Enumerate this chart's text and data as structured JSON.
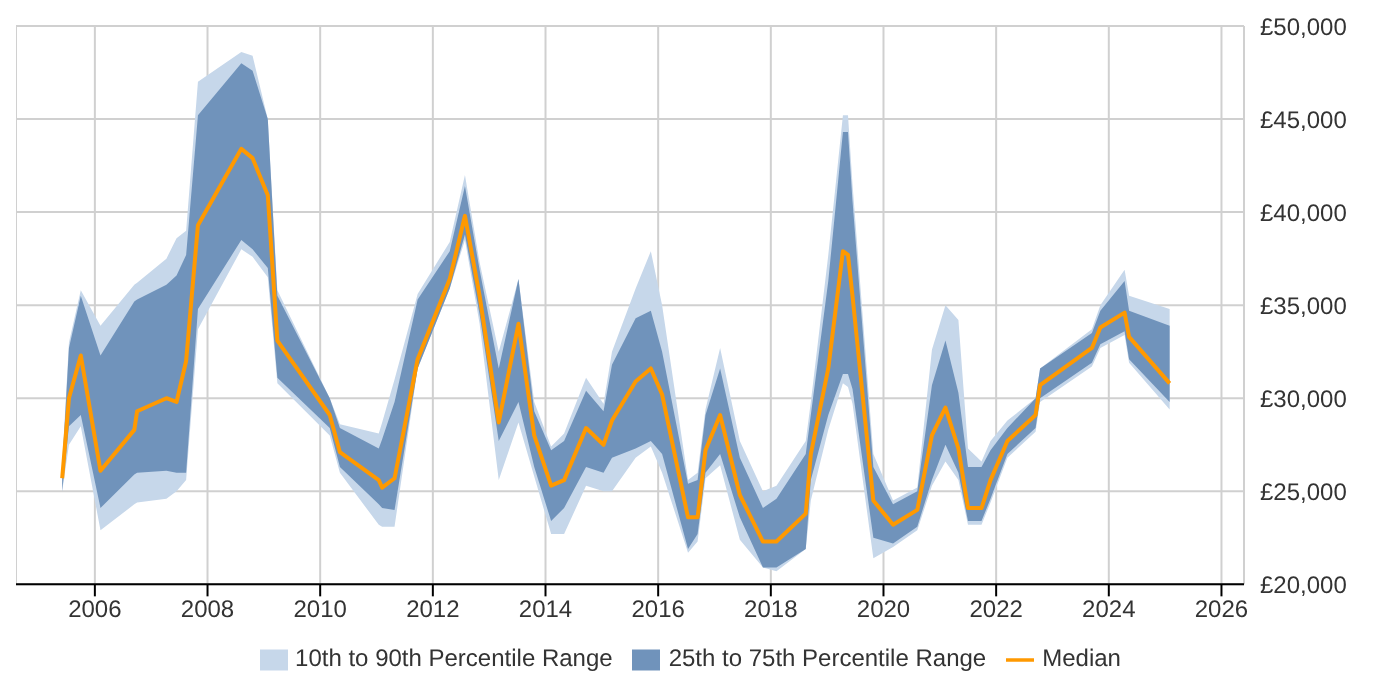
{
  "chart_data": {
    "type": "line",
    "grid": true,
    "legend": "bottom",
    "x": [
      2005.42,
      2005.54,
      2005.75,
      2006.1,
      2006.7,
      2006.75,
      2007.27,
      2007.45,
      2007.62,
      2007.83,
      2008.6,
      2008.8,
      2009.07,
      2009.24,
      2010.17,
      2010.35,
      2011.04,
      2011.1,
      2011.32,
      2011.73,
      2012.3,
      2012.57,
      2012.83,
      2013.17,
      2013.52,
      2013.8,
      2014.1,
      2014.33,
      2014.72,
      2015.03,
      2015.18,
      2015.6,
      2015.87,
      2016.07,
      2016.53,
      2016.7,
      2016.84,
      2017.1,
      2017.45,
      2017.86,
      2018.1,
      2018.62,
      2018.71,
      2019.02,
      2019.28,
      2019.37,
      2019.45,
      2019.82,
      2020.17,
      2020.6,
      2020.86,
      2021.1,
      2021.33,
      2021.5,
      2021.74,
      2021.9,
      2022.2,
      2022.7,
      2022.78,
      2023.7,
      2023.85,
      2024.28,
      2024.36,
      2025.08
    ],
    "series": [
      {
        "name": "10th to 90th Percentile Range",
        "type": "area",
        "color": "#c6d7ea",
        "lower": [
          25000,
          27500,
          28500,
          22900,
          24300,
          24400,
          24600,
          25000,
          25600,
          33700,
          38000,
          37600,
          36500,
          30800,
          28000,
          26000,
          23200,
          23100,
          23100,
          31600,
          35900,
          38500,
          34000,
          25600,
          28700,
          25800,
          22700,
          22700,
          25300,
          25000,
          25000,
          26800,
          27400,
          26000,
          21700,
          22300,
          25700,
          26400,
          22400,
          20900,
          20700,
          21900,
          24500,
          28300,
          30800,
          30600,
          29700,
          21400,
          22000,
          22900,
          25300,
          26600,
          25600,
          23200,
          23200,
          24400,
          26800,
          28200,
          29800,
          31700,
          32700,
          33400,
          31900,
          29400
        ],
        "values": [
          null,
          null,
          null,
          null,
          null,
          null,
          null,
          null,
          null,
          null,
          null,
          null,
          null,
          null,
          null,
          null,
          null,
          null,
          null,
          null,
          null,
          null,
          null,
          null,
          null,
          null,
          null,
          null,
          null,
          null,
          null,
          null,
          null,
          null,
          null,
          null,
          null,
          null,
          null,
          null,
          null,
          null,
          null,
          null,
          null,
          null,
          null,
          null,
          null,
          null,
          null,
          null,
          null,
          null,
          null,
          null,
          null,
          null,
          null,
          null,
          null,
          null,
          null,
          null
        ],
        "upper": [
          26500,
          33000,
          35800,
          33900,
          36100,
          36200,
          37500,
          38600,
          39000,
          47000,
          48600,
          48400,
          45000,
          35800,
          30000,
          28600,
          28100,
          28700,
          31000,
          35600,
          38400,
          42000,
          37300,
          32500,
          36400,
          29800,
          27400,
          28100,
          31100,
          29700,
          32500,
          35900,
          37900,
          35000,
          25600,
          26000,
          29400,
          32700,
          27700,
          25000,
          25300,
          27700,
          29800,
          37700,
          45200,
          45200,
          41500,
          27000,
          24500,
          25200,
          32600,
          35000,
          34200,
          27300,
          26600,
          27700,
          28800,
          30000,
          31600,
          33700,
          35000,
          36900,
          35500,
          34800
        ]
      },
      {
        "name": "25th to 75th Percentile Range",
        "type": "area",
        "color": "#7093bb",
        "lower": [
          25000,
          28500,
          29100,
          24100,
          25900,
          26000,
          26100,
          26000,
          26000,
          34800,
          38500,
          38000,
          37000,
          31100,
          28400,
          26300,
          24300,
          24100,
          24000,
          31600,
          35900,
          38800,
          34500,
          27700,
          29800,
          26300,
          23400,
          24100,
          26300,
          26000,
          26800,
          27300,
          27700,
          27000,
          21900,
          22700,
          26000,
          27000,
          23600,
          20900,
          20900,
          21900,
          25600,
          29100,
          31300,
          31300,
          30500,
          22500,
          22200,
          23100,
          25600,
          27500,
          26000,
          23400,
          23400,
          24600,
          27000,
          28400,
          30000,
          31900,
          32900,
          33600,
          32100,
          29800
        ],
        "values": [
          null,
          null,
          null,
          null,
          null,
          null,
          null,
          null,
          null,
          null,
          null,
          null,
          null,
          null,
          null,
          null,
          null,
          null,
          null,
          null,
          null,
          null,
          null,
          null,
          null,
          null,
          null,
          null,
          null,
          null,
          null,
          null,
          null,
          null,
          null,
          null,
          null,
          null,
          null,
          null,
          null,
          null,
          null,
          null,
          null,
          null,
          null,
          null,
          null,
          null,
          null,
          null,
          null,
          null,
          null,
          null,
          null,
          null,
          null,
          null,
          null,
          null,
          null,
          null
        ],
        "upper": [
          26200,
          32700,
          35500,
          32300,
          35200,
          35300,
          36100,
          36600,
          37700,
          45200,
          48000,
          47600,
          45000,
          35500,
          30000,
          28400,
          27300,
          27800,
          29800,
          35300,
          37900,
          41400,
          36900,
          31600,
          36400,
          29300,
          27200,
          27700,
          30400,
          29300,
          31800,
          34300,
          34700,
          32500,
          25400,
          25600,
          29100,
          31600,
          26800,
          24100,
          24600,
          27000,
          29100,
          36300,
          44300,
          44300,
          40600,
          26300,
          24300,
          25000,
          30700,
          33100,
          30300,
          26300,
          26300,
          27200,
          28400,
          30000,
          31600,
          33500,
          34700,
          36300,
          34700,
          33900
        ]
      },
      {
        "name": "Median",
        "type": "line",
        "color": "#ff9900",
        "values": [
          25700,
          30000,
          32300,
          26100,
          28300,
          29300,
          30000,
          29800,
          32000,
          39300,
          43400,
          42900,
          40900,
          33100,
          29100,
          27100,
          25600,
          25200,
          25700,
          32100,
          36400,
          39800,
          35500,
          28700,
          34000,
          28000,
          25300,
          25600,
          28400,
          27500,
          28800,
          30900,
          31600,
          30200,
          23600,
          23600,
          27200,
          29100,
          24800,
          22300,
          22300,
          23800,
          27000,
          31600,
          37900,
          37700,
          35500,
          24500,
          23200,
          24000,
          28000,
          29500,
          27300,
          24100,
          24100,
          25600,
          27700,
          29100,
          30700,
          32700,
          33800,
          34600,
          33300,
          30800
        ]
      }
    ],
    "xlim": [
      2004.6,
      2026.4
    ],
    "xticks": [
      2006,
      2008,
      2010,
      2012,
      2014,
      2016,
      2018,
      2020,
      2022,
      2024,
      2026
    ],
    "ylim": [
      20000,
      50000
    ],
    "yticks": [
      {
        "value": 20000,
        "label": "£20,000"
      },
      {
        "value": 25000,
        "label": "£25,000"
      },
      {
        "value": 30000,
        "label": "£30,000"
      },
      {
        "value": 35000,
        "label": "£35,000"
      },
      {
        "value": 40000,
        "label": "£40,000"
      },
      {
        "value": 45000,
        "label": "£45,000"
      },
      {
        "value": 50000,
        "label": "£50,000"
      }
    ]
  }
}
